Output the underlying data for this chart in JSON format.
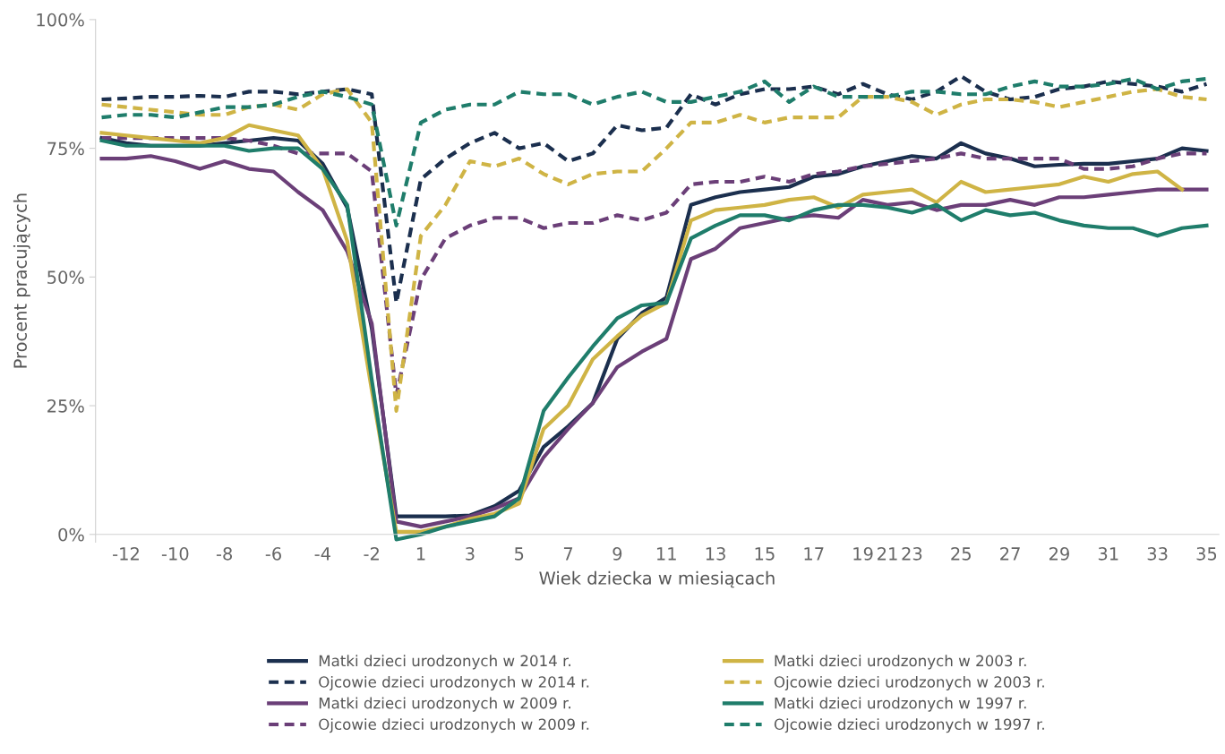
{
  "chart_data": {
    "type": "line",
    "xlabel": "Wiek dziecka w miesiącach",
    "ylabel": "Procent pracujących",
    "categories": [
      null,
      "-12",
      null,
      "-10",
      null,
      "-8",
      null,
      "-6",
      null,
      "-4",
      null,
      "-2",
      null,
      "1",
      null,
      "3",
      null,
      "5",
      null,
      "7",
      null,
      "9",
      null,
      "11",
      null,
      "13",
      null,
      "15",
      null,
      "17",
      null,
      "19",
      "21",
      "23",
      null,
      "25",
      null,
      "27",
      null,
      "29",
      null,
      "31",
      null,
      "33",
      null,
      "35"
    ],
    "ylim": [
      -1.5,
      100
    ],
    "yticks": [
      {
        "value": 0,
        "label": "0%"
      },
      {
        "value": 25,
        "label": "25%"
      },
      {
        "value": 50,
        "label": "50%"
      },
      {
        "value": 75,
        "label": "75%"
      },
      {
        "value": 100,
        "label": "100%"
      }
    ],
    "grid": false,
    "legend": "bottom",
    "marker": "none",
    "series": [
      {
        "name": "Matki dzieci urodzonych w 2014 r.",
        "color": "#1b2f4e",
        "line_style": "solid",
        "values": [
          77,
          76,
          75.5,
          75.5,
          75.5,
          76,
          76.5,
          77,
          76.5,
          72,
          63.5,
          40,
          3.5,
          3.5,
          3.5,
          3.7,
          5.5,
          8.5,
          17,
          21,
          25.5,
          38,
          43,
          46,
          64,
          65.5,
          66.5,
          67,
          67.5,
          69.5,
          70,
          71.5,
          72.5,
          73.5,
          73,
          76,
          74,
          73,
          71.5,
          71.8,
          72,
          72,
          72.5,
          73,
          75,
          74.5
        ]
      },
      {
        "name": "Ojcowie dzieci urodzonych w 2014 r.",
        "color": "#1b2f4e",
        "line_style": "dashed",
        "values": [
          84.5,
          84.7,
          85,
          85,
          85.2,
          85,
          86,
          86,
          85.5,
          86,
          86.5,
          85.5,
          45,
          69,
          73,
          76,
          78,
          75,
          76,
          72.5,
          74,
          79.5,
          78.5,
          79,
          85.5,
          83.5,
          85.5,
          86.5,
          86.5,
          87,
          85.5,
          87.5,
          85.5,
          84.5,
          86,
          89,
          86,
          84.5,
          85,
          86.5,
          87,
          88,
          87.5,
          87,
          86,
          87.5
        ]
      },
      {
        "name": "Matki dzieci urodzonych w 2009 r.",
        "color": "#6b3f78",
        "line_style": "solid",
        "values": [
          73,
          73,
          73.5,
          72.5,
          71,
          72.5,
          71,
          70.5,
          66.5,
          63,
          55,
          41,
          2.5,
          1.5,
          2.5,
          3.5,
          5,
          7,
          15,
          20.5,
          25.5,
          32.5,
          35.5,
          38,
          53.5,
          55.5,
          59.5,
          60.5,
          61.5,
          62,
          61.5,
          65,
          64,
          64.5,
          63,
          64,
          64,
          65,
          64,
          65.5,
          65.5,
          66,
          66.5,
          67,
          67,
          67
        ]
      },
      {
        "name": "Ojcowie dzieci urodzonych w 2009 r.",
        "color": "#6b3f78",
        "line_style": "dashed",
        "values": [
          77,
          77,
          77,
          77,
          77,
          77,
          76.5,
          75.5,
          74,
          74,
          74,
          70.5,
          27,
          49.5,
          57.5,
          60,
          61.5,
          61.5,
          59.5,
          60.5,
          60.5,
          62,
          61,
          62.5,
          68,
          68.5,
          68.5,
          69.5,
          68.5,
          70,
          70.5,
          71.5,
          72,
          72.5,
          73,
          74,
          73,
          73,
          73,
          73,
          71,
          71,
          71.5,
          73,
          74,
          74
        ]
      },
      {
        "name": "Matki dzieci urodzonych w 2003 r.",
        "color": "#cfb445",
        "line_style": "solid",
        "values": [
          78,
          77.5,
          77,
          76.5,
          76,
          77,
          79.5,
          78.5,
          77.5,
          71,
          57,
          28,
          0.5,
          0.5,
          1.5,
          3,
          4,
          6,
          20.5,
          25,
          34,
          38.5,
          42.5,
          45,
          61,
          63,
          63.5,
          64,
          65,
          65.5,
          63.5,
          66,
          66.5,
          67,
          64.5,
          68.5,
          66.5,
          67,
          67.5,
          68,
          69.5,
          68.5,
          70,
          70.5,
          67,
          null
        ]
      },
      {
        "name": "Ojcowie dzieci urodzonych w 2003 r.",
        "color": "#cfb445",
        "line_style": "dashed",
        "values": [
          83.5,
          83,
          82.5,
          82,
          81.5,
          81.5,
          83,
          83.5,
          82.5,
          85.5,
          86.5,
          80,
          24,
          58,
          64,
          72.5,
          71.5,
          73,
          70,
          68,
          70,
          70.5,
          70.5,
          75,
          80,
          80,
          81.5,
          80,
          81,
          81,
          81,
          85,
          85,
          84,
          81.5,
          83.5,
          84.5,
          84.5,
          84,
          83,
          84,
          85,
          86,
          86.5,
          85,
          84.5
        ]
      },
      {
        "name": "Matki dzieci urodzonych w 1997 r.",
        "color": "#1f7d6b",
        "line_style": "solid",
        "values": [
          76.5,
          75.5,
          75.5,
          75.5,
          75.5,
          75.5,
          74.5,
          75,
          75,
          71,
          64,
          30,
          -1,
          0,
          1.5,
          2.5,
          3.5,
          7,
          24,
          30.5,
          36.5,
          42,
          44.5,
          45,
          57.5,
          60,
          62,
          62,
          61,
          63,
          64,
          64,
          63.5,
          62.5,
          64,
          61,
          63,
          62,
          62.5,
          61,
          60,
          59.5,
          59.5,
          58,
          59.5,
          60
        ]
      },
      {
        "name": "Ojcowie dzieci urodzonych w 1997 r.",
        "color": "#1f7d6b",
        "line_style": "dashed",
        "values": [
          81,
          81.5,
          81.5,
          81,
          82,
          83,
          83,
          83.5,
          85,
          86,
          85,
          83.5,
          60,
          80,
          82.5,
          83.5,
          83.5,
          86,
          85.5,
          85.5,
          83.5,
          85,
          86,
          84,
          84,
          85,
          86,
          88,
          84,
          87,
          85,
          85,
          85,
          86,
          86,
          85.5,
          85.5,
          87,
          88,
          87,
          87,
          87.5,
          88.5,
          86.5,
          88,
          88.5
        ]
      }
    ]
  }
}
